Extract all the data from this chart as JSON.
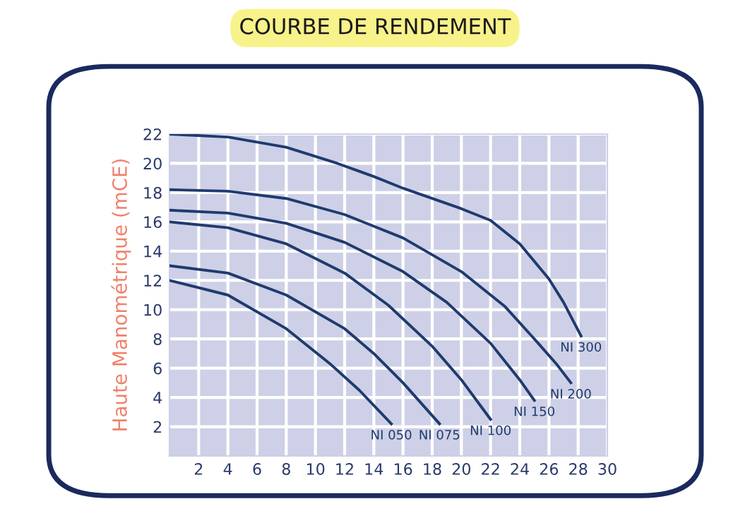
{
  "chart_data": {
    "type": "line",
    "title": "COURBE DE RENDEMENT",
    "ylabel": "Haute Manométrique (mCE)",
    "xlim": [
      0,
      30
    ],
    "ylim": [
      0,
      22
    ],
    "xticks": [
      2,
      4,
      6,
      8,
      10,
      12,
      14,
      16,
      18,
      20,
      22,
      24,
      26,
      28,
      30
    ],
    "yticks": [
      2,
      4,
      6,
      8,
      10,
      12,
      14,
      16,
      18,
      20,
      22
    ],
    "grid": true,
    "marker": "none",
    "line_style": "solid",
    "series": [
      {
        "name": "NI 300",
        "color": "#1f3a6e",
        "x": [
          0,
          4,
          8,
          11.5,
          14,
          16,
          18,
          20,
          22,
          24,
          26,
          27,
          28.2
        ],
        "values": [
          22,
          21.8,
          21.1,
          20,
          19.1,
          18.3,
          17.6,
          16.9,
          16.1,
          14.5,
          12.1,
          10.5,
          8.2
        ]
      },
      {
        "name": "NI 200",
        "color": "#1f3a6e",
        "x": [
          0,
          4,
          8,
          12,
          16,
          20,
          23,
          25,
          26.5,
          27.5
        ],
        "values": [
          18.2,
          18.1,
          17.6,
          16.5,
          14.9,
          12.6,
          10.2,
          8,
          6.3,
          5
        ]
      },
      {
        "name": "NI 150",
        "color": "#1f3a6e",
        "x": [
          0,
          4,
          8,
          12,
          16,
          19,
          22,
          24,
          25
        ],
        "values": [
          16.8,
          16.6,
          15.9,
          14.6,
          12.6,
          10.5,
          7.7,
          5.2,
          3.8
        ]
      },
      {
        "name": "NI 100",
        "color": "#1f3a6e",
        "x": [
          0,
          4,
          8,
          12,
          15,
          18,
          20,
          22
        ],
        "values": [
          16,
          15.6,
          14.5,
          12.5,
          10.3,
          7.5,
          5.2,
          2.5
        ]
      },
      {
        "name": "NI 075",
        "color": "#1f3a6e",
        "x": [
          0,
          4,
          8,
          12,
          14,
          16,
          18.5
        ],
        "values": [
          13,
          12.5,
          11,
          8.7,
          7,
          5,
          2.2
        ]
      },
      {
        "name": "NI 050",
        "color": "#1f3a6e",
        "x": [
          0,
          4,
          8,
          11,
          13,
          15.2
        ],
        "values": [
          12,
          11,
          8.7,
          6.3,
          4.5,
          2.2
        ]
      }
    ]
  }
}
